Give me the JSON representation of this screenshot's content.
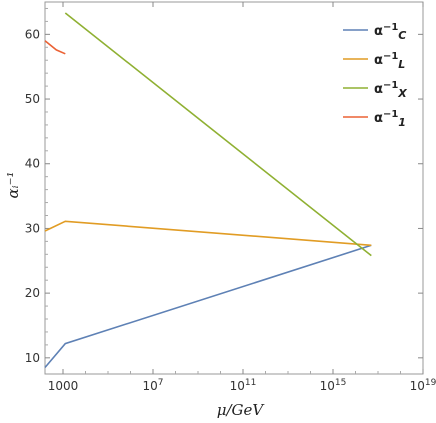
{
  "chart_data": {
    "type": "line",
    "xlabel": "μ/GeV",
    "ylabel": "αᵢ⁻¹",
    "x_scale": "log10",
    "xlim_log10": [
      2.2,
      19
    ],
    "ylim": [
      7.5,
      65
    ],
    "x_ticks": [
      {
        "log10": 3,
        "label": "1000"
      },
      {
        "log10": 7,
        "label": "10",
        "sup": "7"
      },
      {
        "log10": 11,
        "label": "10",
        "sup": "11"
      },
      {
        "log10": 15,
        "label": "10",
        "sup": "15"
      },
      {
        "log10": 19,
        "label": "10",
        "sup": "19"
      }
    ],
    "y_ticks": [
      10,
      20,
      30,
      40,
      50,
      60
    ],
    "legend_position": "top-right",
    "series": [
      {
        "base": "α",
        "sup": "−1",
        "sub": "C",
        "color": "#5E81B5",
        "points": [
          [
            2.2,
            8.5
          ],
          [
            3.1,
            12.2
          ],
          [
            16.7,
            27.4
          ]
        ]
      },
      {
        "base": "α",
        "sup": "−1",
        "sub": "L",
        "color": "#E19C24",
        "points": [
          [
            2.2,
            29.6
          ],
          [
            3.1,
            31.1
          ],
          [
            16.7,
            27.4
          ]
        ]
      },
      {
        "base": "α",
        "sup": "−1",
        "sub": "X",
        "color": "#8FB032",
        "points": [
          [
            3.1,
            63.3
          ],
          [
            16.7,
            25.8
          ]
        ]
      },
      {
        "base": "α",
        "sup": "−1",
        "sub": "1",
        "color": "#EB6235",
        "points": [
          [
            2.2,
            59.0
          ],
          [
            2.7,
            57.6
          ],
          [
            3.1,
            57.0
          ]
        ]
      }
    ]
  }
}
